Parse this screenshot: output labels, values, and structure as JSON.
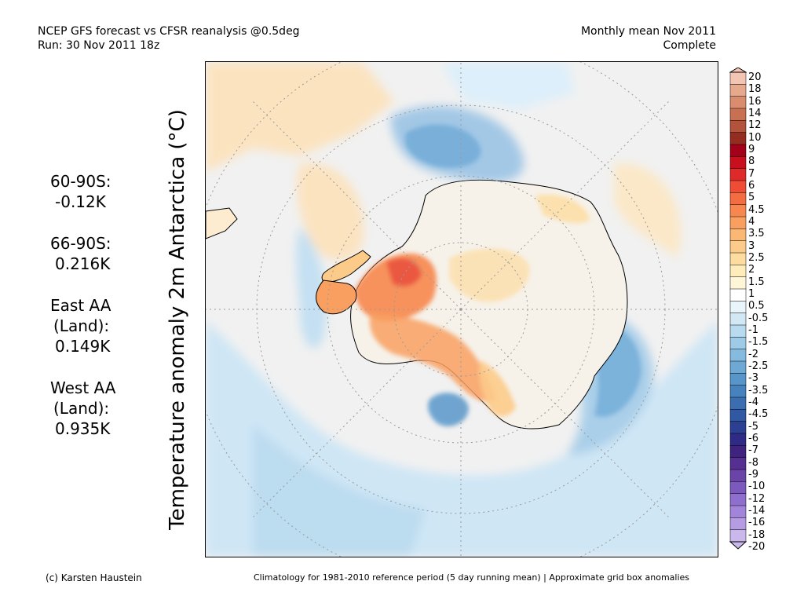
{
  "header": {
    "title_line1": "NCEP GFS forecast vs CFSR reanalysis @0.5deg",
    "title_line2": "Run: 30 Nov 2011 18z",
    "period_line1": "Monthly mean Nov 2011",
    "period_line2": "Complete"
  },
  "map": {
    "ylabel": "Temperature anomaly 2m Antarctica (°C)",
    "projection": "south-polar stereographic",
    "grid": true
  },
  "stats": [
    {
      "label_lines": [
        "60-90S:"
      ],
      "value": "-0.12K"
    },
    {
      "label_lines": [
        "66-90S:"
      ],
      "value": "0.216K"
    },
    {
      "label_lines": [
        "East AA",
        "(Land):"
      ],
      "value": "0.149K"
    },
    {
      "label_lines": [
        "West AA",
        "(Land):"
      ],
      "value": "0.935K"
    }
  ],
  "colorbar": {
    "labels": [
      "20",
      "18",
      "16",
      "14",
      "12",
      "10",
      "9",
      "8",
      "7",
      "6",
      "5",
      "4.5",
      "4",
      "3.5",
      "3",
      "2.5",
      "2",
      "1.5",
      "1",
      "0.5",
      "-0.5",
      "-1",
      "-1.5",
      "-2",
      "-2.5",
      "-3",
      "-3.5",
      "-4",
      "-4.5",
      "-5",
      "-6",
      "-7",
      "-8",
      "-9",
      "-10",
      "-12",
      "-14",
      "-16",
      "-18",
      "-20"
    ],
    "colors": [
      "#f3c5b3",
      "#e7a98d",
      "#d98d6e",
      "#c96f52",
      "#b3533b",
      "#952c22",
      "#a3001a",
      "#c80f1e",
      "#e02a2a",
      "#ef4b35",
      "#f46c41",
      "#f7874e",
      "#f9a060",
      "#fbb874",
      "#fdcb89",
      "#fedc9f",
      "#feecbb",
      "#fff6d8",
      "#ffffff",
      "#e9f4fb",
      "#d2e8f5",
      "#b9dbef",
      "#9fcbe8",
      "#86bbe0",
      "#6ea9d6",
      "#5896ca",
      "#4682bd",
      "#3a6eb0",
      "#3158a2",
      "#2b4093",
      "#2e2a86",
      "#3f237e",
      "#562f92",
      "#6a44a8",
      "#7c59bc",
      "#8f6fcd",
      "#a285da",
      "#b69de3",
      "#cab7ec"
    ]
  },
  "footer": {
    "left": "(c) Karsten Haustein",
    "right": "Climatology for 1981-2010 reference period (5 day running mean) | Approximate grid box anomalies"
  }
}
